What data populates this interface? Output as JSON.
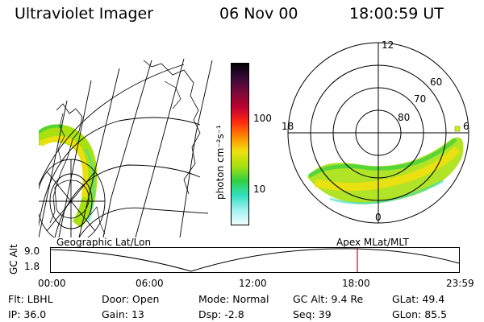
{
  "header": {
    "instrument": "Ultraviolet Imager",
    "date": "06 Nov 00",
    "time": "18:00:59 UT"
  },
  "colorbar": {
    "unit_label": "photon cm⁻²s⁻¹",
    "ticks": [
      "100",
      "10"
    ],
    "colors": [
      "#000000",
      "#3a0a3a",
      "#7a0a3a",
      "#c00030",
      "#ff2a10",
      "#ff8a00",
      "#f0e010",
      "#a8e010",
      "#30d040",
      "#30e0c0",
      "#a0f0f0",
      "#f0ffff"
    ]
  },
  "polar": {
    "mlt_labels": {
      "top": "12",
      "left": "18",
      "right": "6",
      "bottom": "0"
    },
    "lat_labels": [
      "60",
      "70",
      "80"
    ]
  },
  "timeline": {
    "left_label": "Geographic Lat/Lon",
    "right_label": "Apex MLat/MLT",
    "axis_title": "GC Alt",
    "y_ticks": [
      "9.0",
      "1.8"
    ],
    "x_ticks": [
      "00:00",
      "06:00",
      "12:00",
      "18:00",
      "23:59"
    ],
    "cursor_time": "18:00"
  },
  "info": {
    "row1": [
      {
        "label": "Flt:",
        "value": "LBHL"
      },
      {
        "label": "Door:",
        "value": "Open"
      },
      {
        "label": "Mode:",
        "value": "Normal"
      },
      {
        "label": "GC Alt:",
        "value": "9.4 Re"
      },
      {
        "label": "GLat:",
        "value": "49.4"
      }
    ],
    "row2": [
      {
        "label": "IP:",
        "value": "36.0"
      },
      {
        "label": "Gain:",
        "value": "13"
      },
      {
        "label": "Dsp:",
        "value": "-2.8"
      },
      {
        "label": "Seq:",
        "value": "39"
      },
      {
        "label": "GLon:",
        "value": "85.5"
      }
    ]
  }
}
